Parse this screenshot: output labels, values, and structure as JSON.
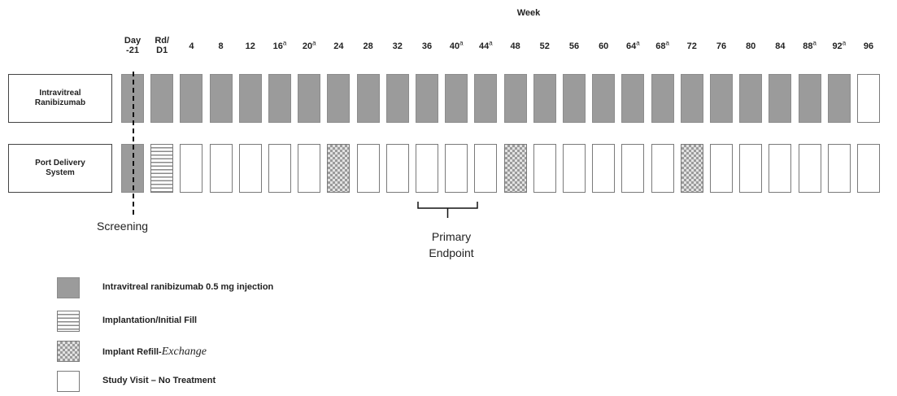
{
  "title": "Week",
  "columns": [
    {
      "top": "Day",
      "bottom": "-21"
    },
    {
      "top": "Rd/",
      "bottom": "D1"
    },
    {
      "label": "4"
    },
    {
      "label": "8"
    },
    {
      "label": "12"
    },
    {
      "label": "16",
      "sup": "a"
    },
    {
      "label": "20",
      "sup": "a"
    },
    {
      "label": "24"
    },
    {
      "label": "28"
    },
    {
      "label": "32"
    },
    {
      "label": "36"
    },
    {
      "label": "40",
      "sup": "a"
    },
    {
      "label": "44",
      "sup": "a"
    },
    {
      "label": "48"
    },
    {
      "label": "52"
    },
    {
      "label": "56"
    },
    {
      "label": "60"
    },
    {
      "label": "64",
      "sup": "a"
    },
    {
      "label": "68",
      "sup": "a"
    },
    {
      "label": "72"
    },
    {
      "label": "76"
    },
    {
      "label": "80"
    },
    {
      "label": "84"
    },
    {
      "label": "88",
      "sup": "a"
    },
    {
      "label": "92",
      "sup": "a"
    },
    {
      "label": "96"
    }
  ],
  "rows": [
    {
      "label_line1": "Intravitreal",
      "label_line2": "Ranibizumab",
      "cells": [
        "injection",
        "injection",
        "injection",
        "injection",
        "injection",
        "injection",
        "injection",
        "injection",
        "injection",
        "injection",
        "injection",
        "injection",
        "injection",
        "injection",
        "injection",
        "injection",
        "injection",
        "injection",
        "injection",
        "injection",
        "injection",
        "injection",
        "injection",
        "injection",
        "injection",
        "visit"
      ]
    },
    {
      "label_line1": "Port Delivery",
      "label_line2": "System",
      "cells": [
        "injection",
        "implant",
        "visit",
        "visit",
        "visit",
        "visit",
        "visit",
        "refill",
        "visit",
        "visit",
        "visit",
        "visit",
        "visit",
        "refill",
        "visit",
        "visit",
        "visit",
        "visit",
        "visit",
        "refill",
        "visit",
        "visit",
        "visit",
        "visit",
        "visit",
        "visit"
      ]
    }
  ],
  "screening_label": "Screening",
  "endpoint_label_line1": "Primary",
  "endpoint_label_line2": "Endpoint",
  "legend": [
    {
      "type": "injection",
      "text": "Intravitreal ranibizumab 0.5 mg injection"
    },
    {
      "type": "implant",
      "text": "Implantation/Initial Fill"
    },
    {
      "type": "refill",
      "text": "Implant Refill-",
      "italic_text": "Exchange"
    },
    {
      "type": "visit",
      "text": "Study Visit – No Treatment"
    }
  ],
  "colors": {
    "injection": "#9b9b9b",
    "border": "#7a7a7a",
    "line": "#111111"
  }
}
